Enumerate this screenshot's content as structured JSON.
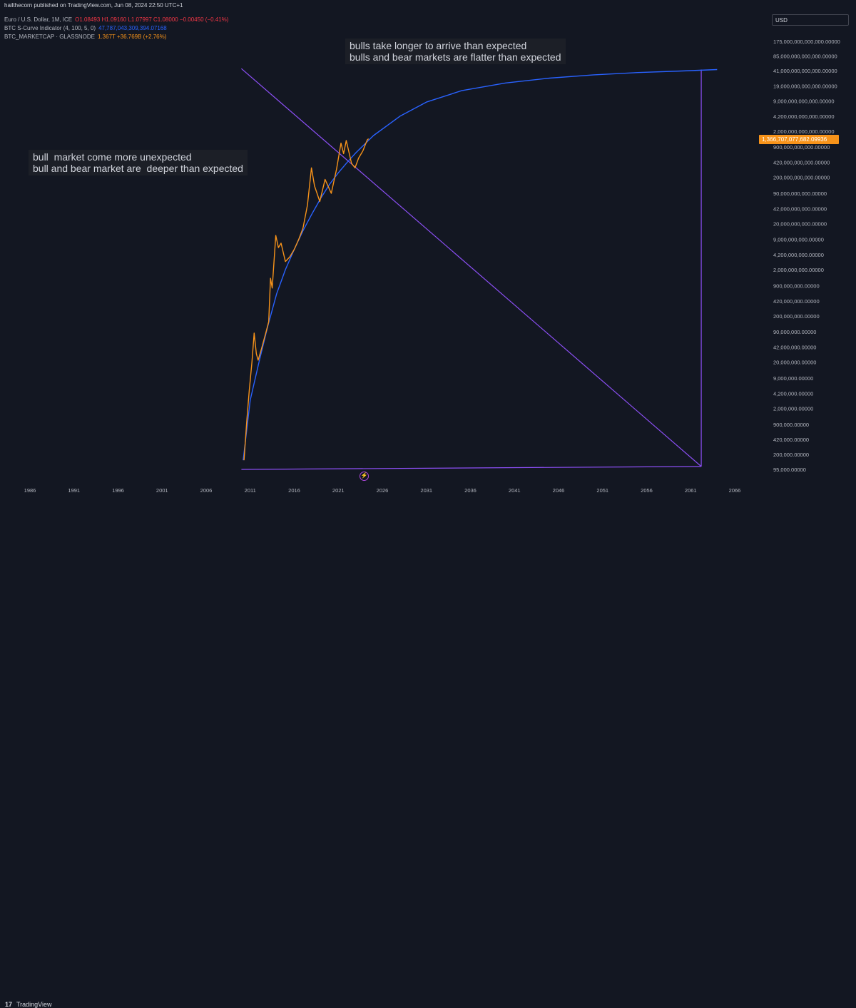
{
  "header": {
    "publisher": "hailthecorn published on TradingView.com, Jun 08, 2024 22:50 UTC+1"
  },
  "legend": [
    {
      "name": "Euro / U.S. Dollar, 1M, ICE",
      "value": "O1.08493 H1.09160 L1.07997 C1.08000 −0.00450 (−0.41%)",
      "color": "#f23645"
    },
    {
      "name": "BTC S-Curve Indicator (4, 100, 5, 0)",
      "value": "47,787,043,309,394.07168",
      "color": "#2962ff"
    },
    {
      "name": "BTC_MARKETCAP · GLASSNODE",
      "value": "1.367T +36.769B (+2.76%)",
      "color": "#f7931a"
    }
  ],
  "currency": "USD",
  "price_badge": "1,366,707,077,682.09936",
  "annotations": {
    "top_right": "bulls take longer to arrive than expected\nbulls and bear markets are flatter than expected",
    "left": "bull  market come more unexpected\nbull and bear market are  deeper than expected"
  },
  "flash_icon": "flash-icon",
  "footer": {
    "logo": "17",
    "brand": "TradingView"
  },
  "colors": {
    "background": "#131722",
    "s_curve": "#2962ff",
    "market_cap": "#f7931a",
    "drawings": "#8c4ff5"
  },
  "chart_data": {
    "type": "line",
    "y_scale": "log",
    "x_ticks": [
      "1986",
      "1991",
      "1996",
      "2001",
      "2006",
      "2011",
      "2016",
      "2021",
      "2026",
      "2031",
      "2036",
      "2041",
      "2046",
      "2051",
      "2056",
      "2061",
      "2066"
    ],
    "y_ticks": [
      "175,000,000,000,000.00000",
      "85,000,000,000,000.00000",
      "41,000,000,000,000.00000",
      "19,000,000,000,000.00000",
      "9,000,000,000,000.00000",
      "4,200,000,000,000.00000",
      "2,000,000,000,000.00000",
      "900,000,000,000.00000",
      "420,000,000,000.00000",
      "200,000,000,000.00000",
      "90,000,000,000.00000",
      "42,000,000,000.00000",
      "20,000,000,000.00000",
      "9,000,000,000.00000",
      "4,200,000,000.00000",
      "2,000,000,000.00000",
      "900,000,000.00000",
      "420,000,000.00000",
      "200,000,000.00000",
      "90,000,000.00000",
      "42,000,000.00000",
      "20,000,000.00000",
      "9,000,000.00000",
      "4,200,000.00000",
      "2,000,000.00000",
      "900,000.00000",
      "420,000.00000",
      "200,000.00000",
      "95,000.00000"
    ],
    "series": [
      {
        "name": "BTC S-Curve Indicator (4, 100, 5, 0)",
        "color": "#2962ff",
        "points": [
          [
            2010.2,
            150000
          ],
          [
            2011.0,
            3000000
          ],
          [
            2012.0,
            20000000
          ],
          [
            2013.0,
            120000000
          ],
          [
            2014.0,
            600000000
          ],
          [
            2015.0,
            2000000000
          ],
          [
            2016.0,
            5500000000
          ],
          [
            2017.0,
            14000000000
          ],
          [
            2018.0,
            32000000000
          ],
          [
            2019.0,
            70000000000
          ],
          [
            2020.0,
            140000000000
          ],
          [
            2021.0,
            250000000000
          ],
          [
            2022.0,
            420000000000
          ],
          [
            2023.0,
            680000000000
          ],
          [
            2025.0,
            1600000000000
          ],
          [
            2028.0,
            4200000000000
          ],
          [
            2031.0,
            8500000000000
          ],
          [
            2035.0,
            15000000000000
          ],
          [
            2040.0,
            22000000000000
          ],
          [
            2045.0,
            28000000000000
          ],
          [
            2050.0,
            33000000000000
          ],
          [
            2055.0,
            37000000000000
          ],
          [
            2060.0,
            40000000000000
          ],
          [
            2064.0,
            43000000000000
          ]
        ]
      },
      {
        "name": "BTC_MARKETCAP · GLASSNODE",
        "color": "#f7931a",
        "points": [
          [
            2010.3,
            150000
          ],
          [
            2010.6,
            1000000
          ],
          [
            2010.9,
            5000000
          ],
          [
            2011.2,
            20000000
          ],
          [
            2011.45,
            85000000
          ],
          [
            2011.7,
            30000000
          ],
          [
            2011.9,
            22000000
          ],
          [
            2012.3,
            40000000
          ],
          [
            2012.8,
            90000000
          ],
          [
            2013.1,
            150000000
          ],
          [
            2013.3,
            1300000000
          ],
          [
            2013.5,
            800000000
          ],
          [
            2013.9,
            11000000000
          ],
          [
            2014.2,
            6000000000
          ],
          [
            2014.5,
            7500000000
          ],
          [
            2015.0,
            3000000000
          ],
          [
            2015.5,
            3800000000
          ],
          [
            2016.0,
            5500000000
          ],
          [
            2016.5,
            9000000000
          ],
          [
            2017.0,
            16000000000
          ],
          [
            2017.5,
            50000000000
          ],
          [
            2017.95,
            320000000000
          ],
          [
            2018.3,
            130000000000
          ],
          [
            2018.9,
            60000000000
          ],
          [
            2019.5,
            180000000000
          ],
          [
            2020.2,
            90000000000
          ],
          [
            2020.8,
            300000000000
          ],
          [
            2021.3,
            1100000000000
          ],
          [
            2021.6,
            650000000000
          ],
          [
            2021.9,
            1250000000000
          ],
          [
            2022.5,
            400000000000
          ],
          [
            2022.9,
            320000000000
          ],
          [
            2023.3,
            520000000000
          ],
          [
            2023.8,
            750000000000
          ],
          [
            2024.1,
            1050000000000
          ],
          [
            2024.3,
            1300000000000
          ],
          [
            2024.44,
            1367000000000
          ]
        ]
      }
    ],
    "drawings": [
      {
        "kind": "line",
        "from": [
          2010.0,
          45000000000000
        ],
        "to": [
          2062.2,
          110000
        ]
      },
      {
        "kind": "line",
        "from": [
          2010.0,
          95000
        ],
        "to": [
          2062.2,
          110000
        ]
      },
      {
        "kind": "line",
        "from": [
          2062.2,
          110000
        ],
        "to": [
          2062.2,
          43000000000000
        ]
      }
    ]
  }
}
